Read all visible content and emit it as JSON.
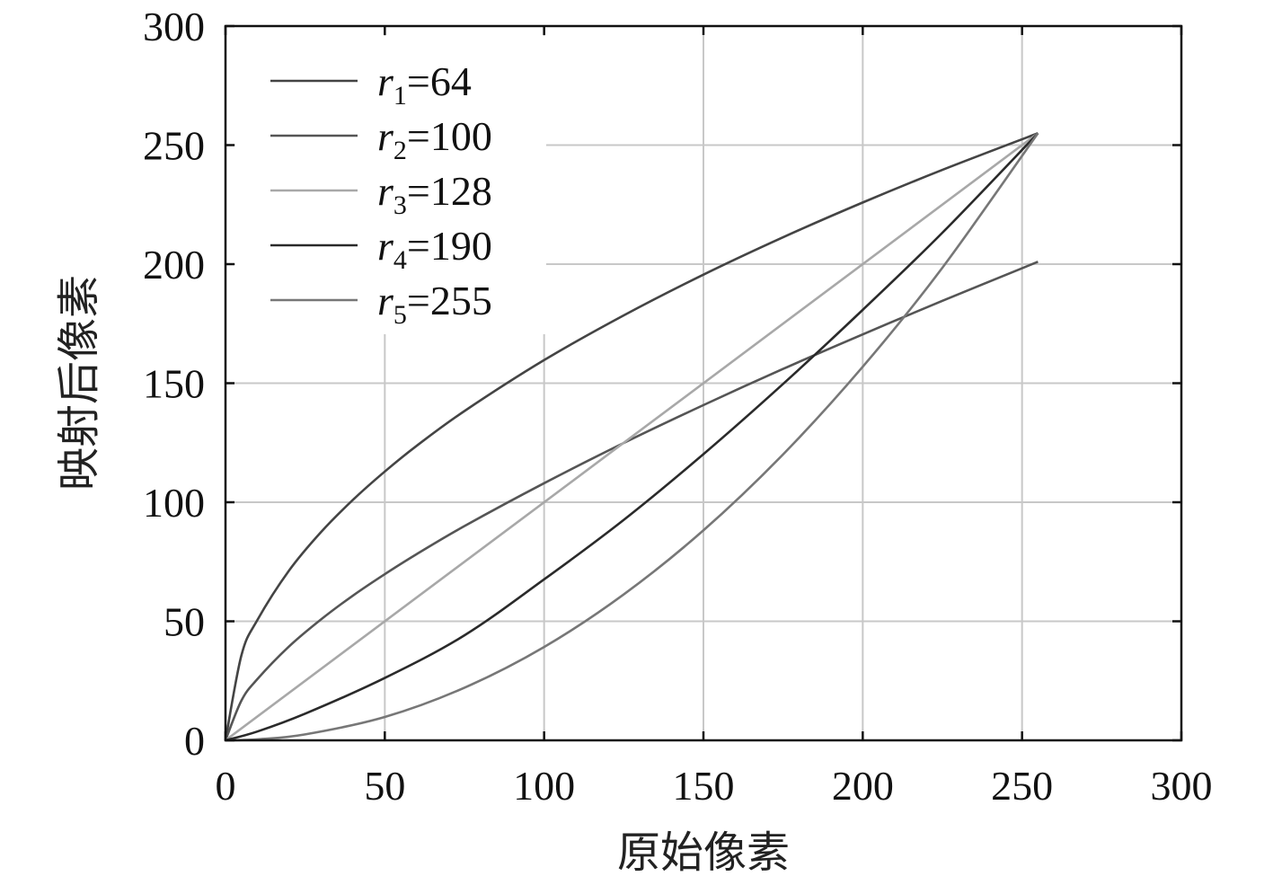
{
  "chart_data": {
    "type": "line",
    "xlabel": "原始像素",
    "ylabel": "映射后像素",
    "xlim": [
      0,
      300
    ],
    "ylim": [
      0,
      300
    ],
    "xticks": [
      0,
      50,
      100,
      150,
      200,
      250,
      300
    ],
    "yticks": [
      0,
      50,
      100,
      150,
      200,
      250,
      300
    ],
    "grid": true,
    "legend_position": "top-left",
    "series": [
      {
        "name": "r1=64",
        "name_var": "r",
        "name_sub": "1",
        "name_value": "=64",
        "color": "#444444",
        "x": [
          0,
          5,
          10,
          20,
          30,
          40,
          50,
          60,
          75,
          100,
          125,
          150,
          175,
          200,
          225,
          255
        ],
        "y": [
          0,
          35.7,
          50.5,
          71.4,
          87.5,
          101.0,
          112.9,
          123.7,
          138.3,
          159.7,
          178.5,
          195.6,
          211.3,
          225.9,
          239.6,
          255
        ]
      },
      {
        "name": "r2=100",
        "name_var": "r",
        "name_sub": "2",
        "name_value": "=100",
        "color": "#555555",
        "x": [
          0,
          5,
          10,
          20,
          30,
          40,
          50,
          60,
          75,
          100,
          125,
          150,
          175,
          200,
          225,
          255
        ],
        "y": [
          0,
          16.7,
          25.7,
          39.5,
          50.8,
          60.8,
          69.8,
          78.2,
          90.0,
          108.0,
          124.9,
          140.8,
          156.0,
          170.5,
          184.6,
          201.0
        ]
      },
      {
        "name": "r3=128",
        "name_var": "r",
        "name_sub": "3",
        "name_value": "=128",
        "color": "#a8a8a8",
        "x": [
          0,
          255
        ],
        "y": [
          0,
          255
        ]
      },
      {
        "name": "r4=190",
        "name_var": "r",
        "name_sub": "4",
        "name_value": "=190",
        "color": "#2a2a2a",
        "x": [
          0,
          10,
          25,
          50,
          75,
          100,
          125,
          150,
          175,
          200,
          225,
          255
        ],
        "y": [
          0,
          3.7,
          11.2,
          26.2,
          44.1,
          67.6,
          92.6,
          120.2,
          149.7,
          180.8,
          213.2,
          255
        ]
      },
      {
        "name": "r5=255",
        "name_var": "r",
        "name_sub": "5",
        "name_value": "=255",
        "color": "#777777",
        "x": [
          0,
          10,
          25,
          50,
          75,
          100,
          125,
          150,
          175,
          200,
          225,
          255
        ],
        "y": [
          0,
          0.4,
          2.5,
          9.8,
          22.1,
          39.2,
          61.3,
          88.2,
          120.1,
          156.9,
          198.5,
          255
        ]
      }
    ]
  }
}
